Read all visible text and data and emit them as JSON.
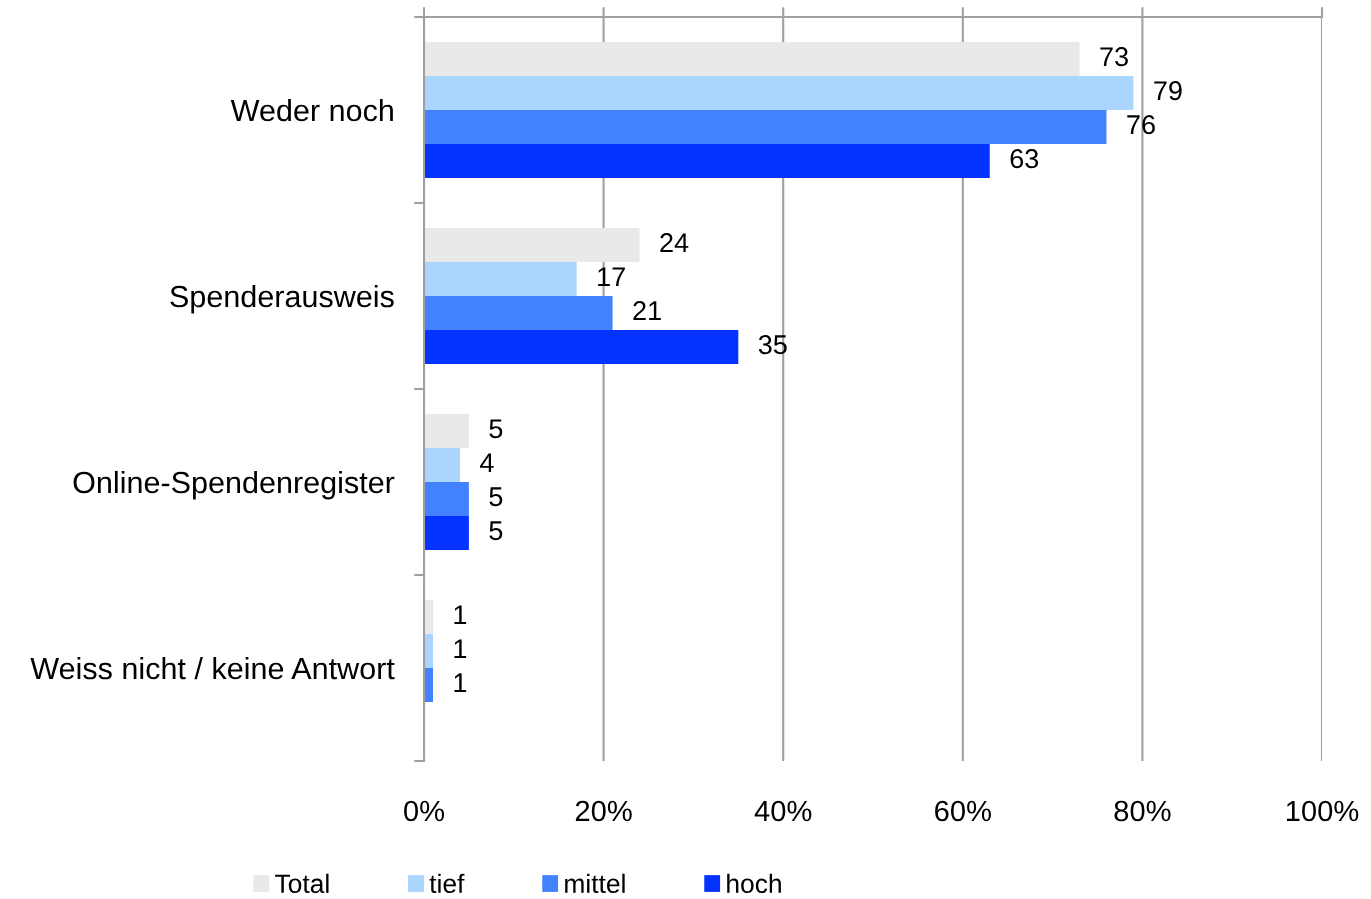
{
  "chart_data": {
    "type": "bar",
    "orientation": "horizontal",
    "categories": [
      "Weder noch",
      "Spenderausweis",
      "Online-Spendenregister",
      "Weiss nicht / keine Antwort"
    ],
    "series": [
      {
        "name": "Total",
        "color": "#e9e9e9",
        "values": [
          73,
          24,
          5,
          1
        ]
      },
      {
        "name": "tief",
        "color": "#a9d5fe",
        "values": [
          79,
          17,
          4,
          1
        ]
      },
      {
        "name": "mittel",
        "color": "#4282ff",
        "values": [
          76,
          21,
          5,
          1
        ]
      },
      {
        "name": "hoch",
        "color": "#0432ff",
        "values": [
          63,
          35,
          5,
          null
        ]
      }
    ],
    "xlim": [
      0,
      100
    ],
    "xticks": [
      {
        "value": 0,
        "label": "0%"
      },
      {
        "value": 20,
        "label": "20%"
      },
      {
        "value": 40,
        "label": "40%"
      },
      {
        "value": 60,
        "label": "60%"
      },
      {
        "value": 80,
        "label": "80%"
      },
      {
        "value": 100,
        "label": "100%"
      }
    ],
    "grid": "x",
    "legend": "bottom",
    "data_labels": true
  }
}
